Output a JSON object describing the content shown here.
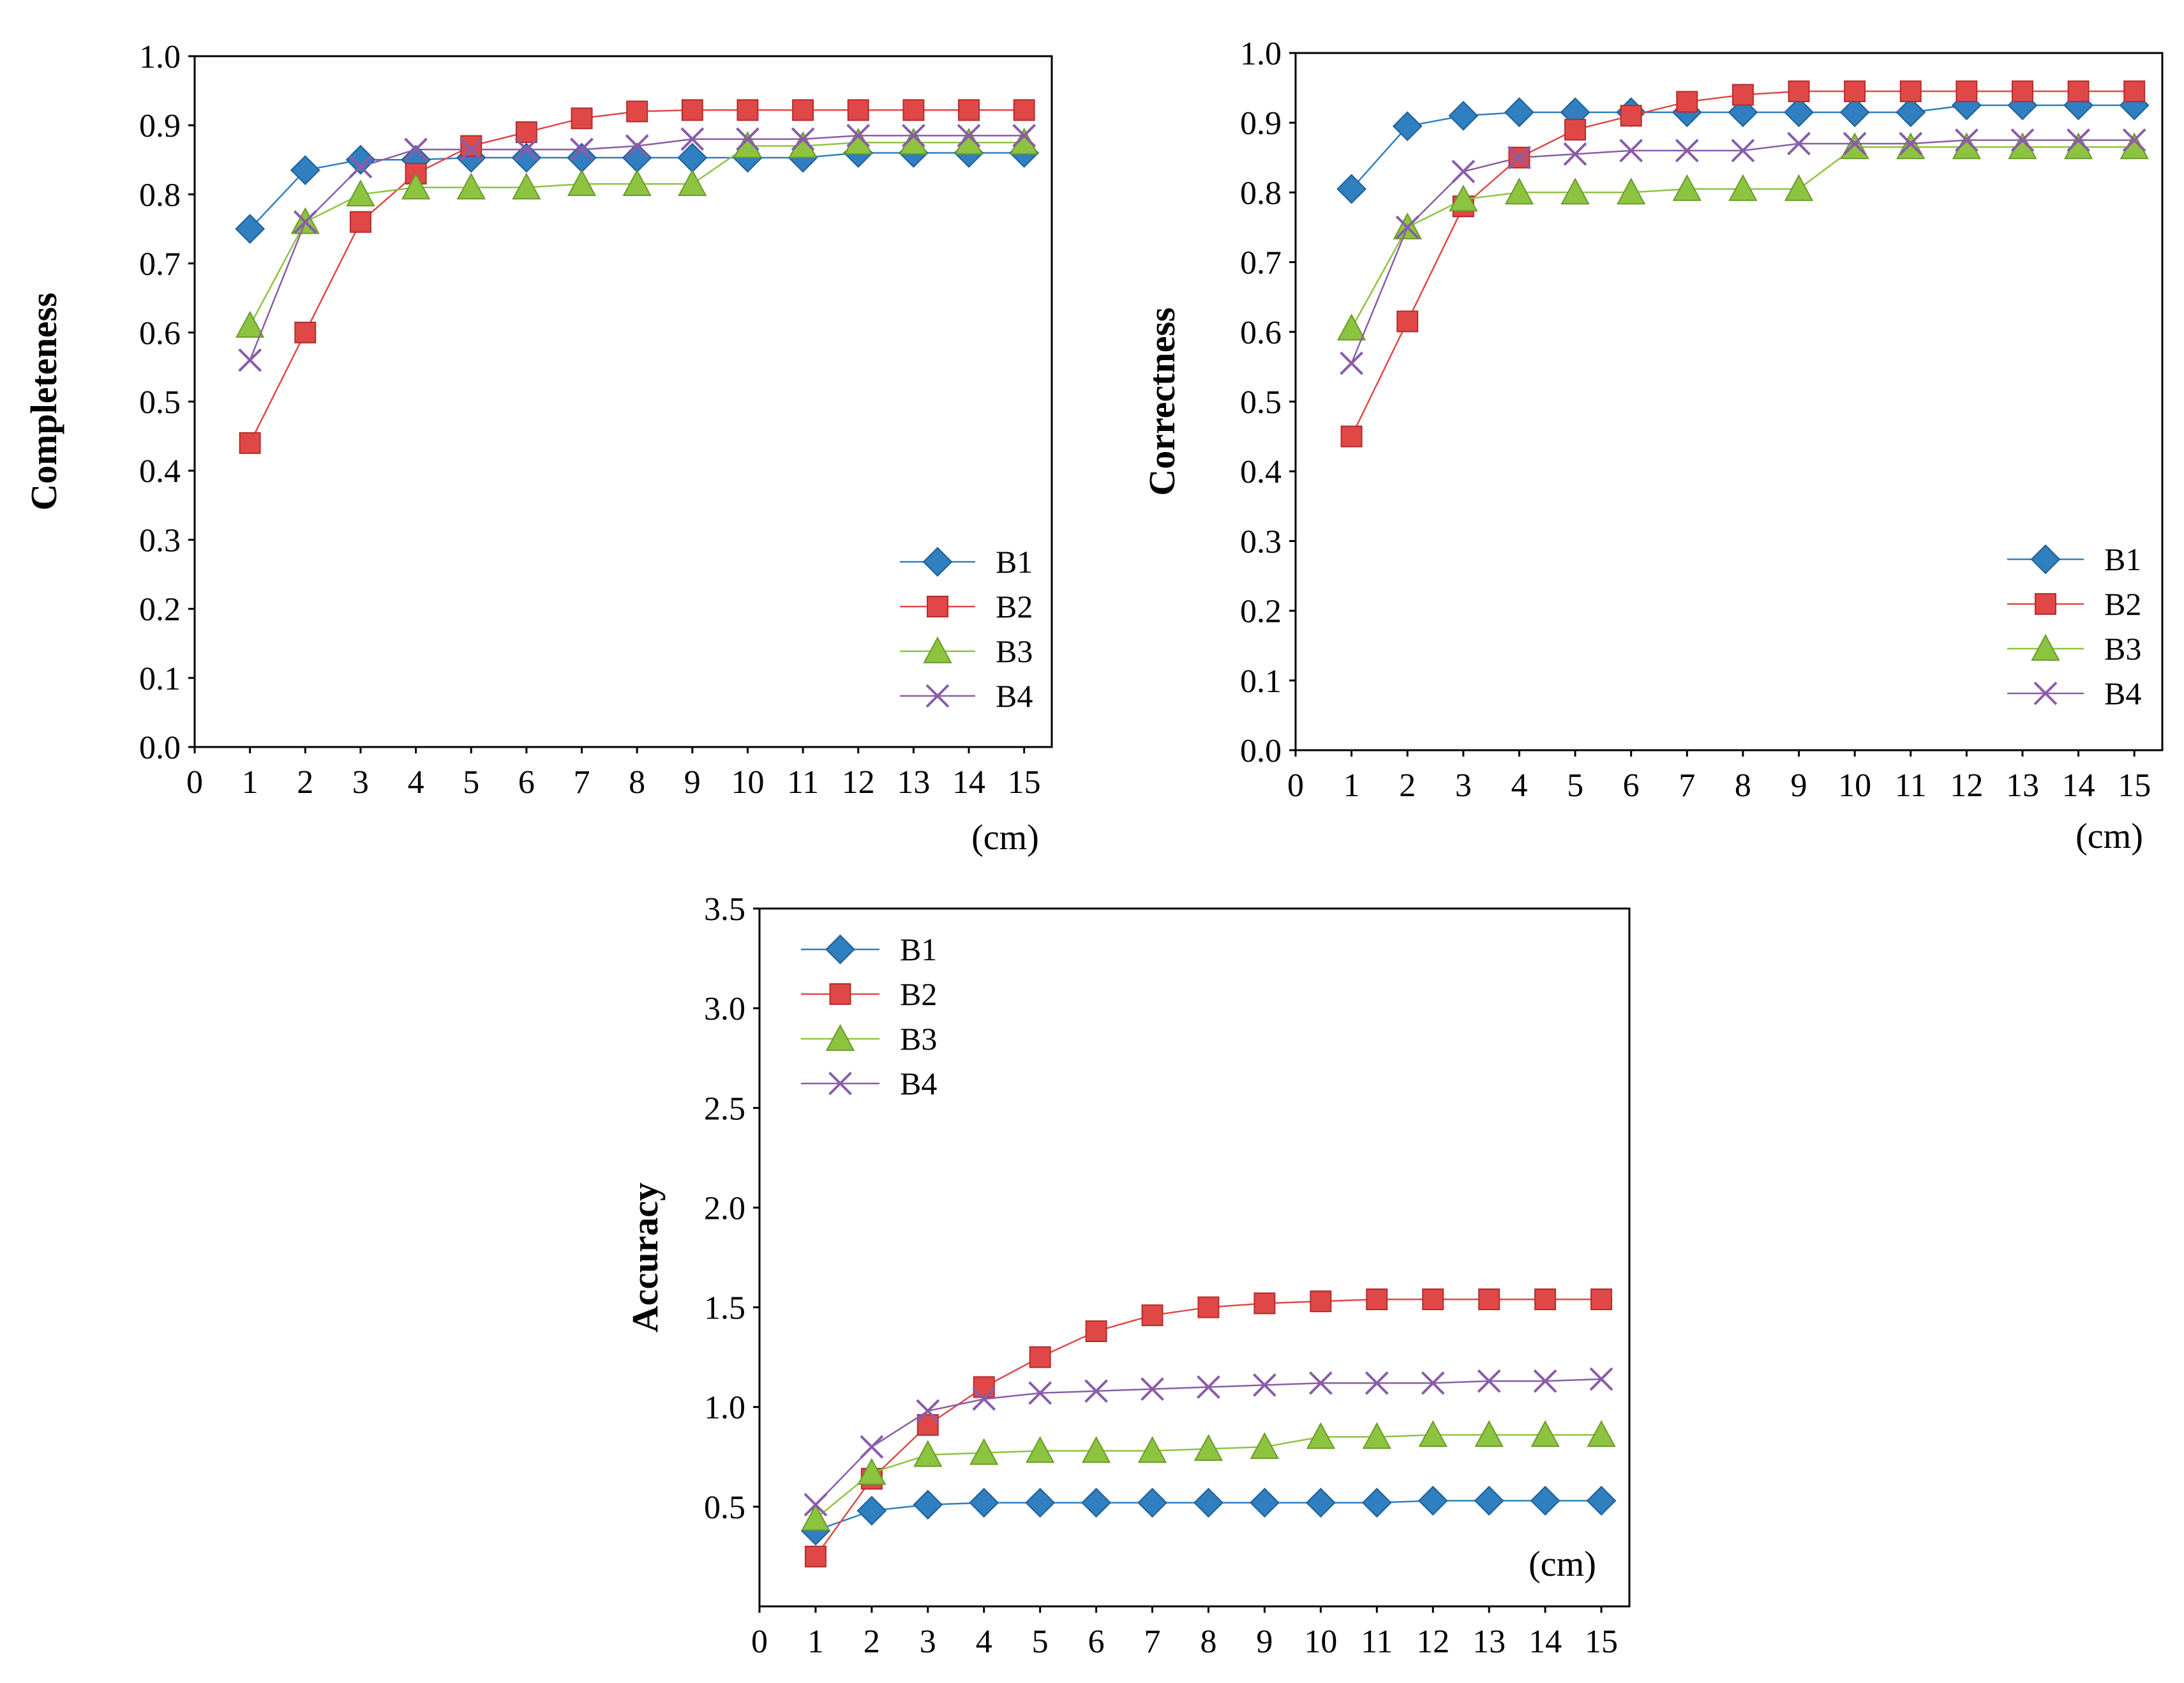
{
  "chart_data": [
    {
      "id": "completeness",
      "type": "line",
      "title": "",
      "xlabel": "(cm)",
      "ylabel": "Completeness",
      "xlim": [
        0,
        15.5
      ],
      "ylim": [
        0,
        1.0
      ],
      "xticks": [
        0,
        1,
        2,
        3,
        4,
        5,
        6,
        7,
        8,
        9,
        10,
        11,
        12,
        13,
        14,
        15
      ],
      "yticks": [
        "0.0",
        "0.1",
        "0.2",
        "0.3",
        "0.4",
        "0.5",
        "0.6",
        "0.7",
        "0.8",
        "0.9",
        "1.0"
      ],
      "grid": false,
      "legend_position": "bottom-right",
      "x": [
        1,
        2,
        3,
        4,
        5,
        6,
        7,
        8,
        9,
        10,
        11,
        12,
        13,
        14,
        15
      ],
      "series": [
        {
          "name": "B1",
          "color": "#2f7fc1",
          "marker": "diamond",
          "values": [
            0.75,
            0.835,
            0.85,
            0.85,
            0.853,
            0.853,
            0.853,
            0.853,
            0.853,
            0.853,
            0.853,
            0.86,
            0.86,
            0.86,
            0.86
          ]
        },
        {
          "name": "B2",
          "color": "#e04848",
          "marker": "square",
          "values": [
            0.44,
            0.6,
            0.76,
            0.83,
            0.87,
            0.89,
            0.91,
            0.92,
            0.922,
            0.922,
            0.922,
            0.922,
            0.922,
            0.922,
            0.922
          ]
        },
        {
          "name": "B3",
          "color": "#8dc43f",
          "marker": "triangle",
          "values": [
            0.61,
            0.76,
            0.8,
            0.81,
            0.81,
            0.81,
            0.815,
            0.815,
            0.815,
            0.87,
            0.87,
            0.875,
            0.875,
            0.875,
            0.875
          ]
        },
        {
          "name": "B4",
          "color": "#8a5ca8",
          "marker": "cross",
          "values": [
            0.56,
            0.76,
            0.84,
            0.865,
            0.865,
            0.865,
            0.865,
            0.87,
            0.88,
            0.88,
            0.88,
            0.885,
            0.885,
            0.885,
            0.885
          ]
        }
      ]
    },
    {
      "id": "correctness",
      "type": "line",
      "title": "",
      "xlabel": "(cm)",
      "ylabel": "Correctness",
      "xlim": [
        0,
        15.5
      ],
      "ylim": [
        0,
        1.0
      ],
      "xticks": [
        0,
        1,
        2,
        3,
        4,
        5,
        6,
        7,
        8,
        9,
        10,
        11,
        12,
        13,
        14,
        15
      ],
      "yticks": [
        "0.0",
        "0.1",
        "0.2",
        "0.3",
        "0.4",
        "0.5",
        "0.6",
        "0.7",
        "0.8",
        "0.9",
        "1.0"
      ],
      "grid": false,
      "legend_position": "bottom-right",
      "x": [
        1,
        2,
        3,
        4,
        5,
        6,
        7,
        8,
        9,
        10,
        11,
        12,
        13,
        14,
        15
      ],
      "series": [
        {
          "name": "B1",
          "color": "#2f7fc1",
          "marker": "diamond",
          "values": [
            0.805,
            0.895,
            0.91,
            0.915,
            0.915,
            0.915,
            0.915,
            0.915,
            0.915,
            0.915,
            0.915,
            0.925,
            0.925,
            0.925,
            0.925
          ]
        },
        {
          "name": "B2",
          "color": "#e04848",
          "marker": "square",
          "values": [
            0.45,
            0.615,
            0.78,
            0.85,
            0.89,
            0.91,
            0.93,
            0.94,
            0.945,
            0.945,
            0.945,
            0.945,
            0.945,
            0.945,
            0.945
          ]
        },
        {
          "name": "B3",
          "color": "#8dc43f",
          "marker": "triangle",
          "values": [
            0.605,
            0.75,
            0.79,
            0.8,
            0.8,
            0.8,
            0.805,
            0.805,
            0.805,
            0.865,
            0.865,
            0.865,
            0.865,
            0.865,
            0.865
          ]
        },
        {
          "name": "B4",
          "color": "#8a5ca8",
          "marker": "cross",
          "values": [
            0.555,
            0.75,
            0.83,
            0.85,
            0.855,
            0.86,
            0.86,
            0.86,
            0.87,
            0.87,
            0.87,
            0.875,
            0.875,
            0.875,
            0.875
          ]
        }
      ]
    },
    {
      "id": "accuracy",
      "type": "line",
      "title": "",
      "xlabel": "(cm)",
      "ylabel": "Accuracy",
      "xlim": [
        0,
        15.5
      ],
      "ylim": [
        0,
        3.5
      ],
      "xticks": [
        0,
        1,
        2,
        3,
        4,
        5,
        6,
        7,
        8,
        9,
        10,
        11,
        12,
        13,
        14,
        15
      ],
      "yticks": [
        "0.5",
        "1.0",
        "1.5",
        "2.0",
        "2.5",
        "3.0",
        "3.5"
      ],
      "grid": false,
      "legend_position": "top-left",
      "x": [
        1,
        2,
        3,
        4,
        5,
        6,
        7,
        8,
        9,
        10,
        11,
        12,
        13,
        14,
        15
      ],
      "series": [
        {
          "name": "B1",
          "color": "#2f7fc1",
          "marker": "diamond",
          "values": [
            0.38,
            0.48,
            0.51,
            0.52,
            0.52,
            0.52,
            0.52,
            0.52,
            0.52,
            0.52,
            0.52,
            0.53,
            0.53,
            0.53,
            0.53
          ]
        },
        {
          "name": "B2",
          "color": "#e04848",
          "marker": "square",
          "values": [
            0.25,
            0.64,
            0.91,
            1.1,
            1.25,
            1.38,
            1.46,
            1.5,
            1.52,
            1.53,
            1.54,
            1.54,
            1.54,
            1.54,
            1.54
          ]
        },
        {
          "name": "B3",
          "color": "#8dc43f",
          "marker": "triangle",
          "values": [
            0.44,
            0.67,
            0.76,
            0.77,
            0.78,
            0.78,
            0.78,
            0.79,
            0.8,
            0.85,
            0.85,
            0.86,
            0.86,
            0.86,
            0.86
          ]
        },
        {
          "name": "B4",
          "color": "#8a5ca8",
          "marker": "cross",
          "values": [
            0.51,
            0.8,
            0.98,
            1.04,
            1.07,
            1.08,
            1.09,
            1.1,
            1.11,
            1.12,
            1.12,
            1.12,
            1.13,
            1.13,
            1.14
          ]
        }
      ]
    }
  ]
}
